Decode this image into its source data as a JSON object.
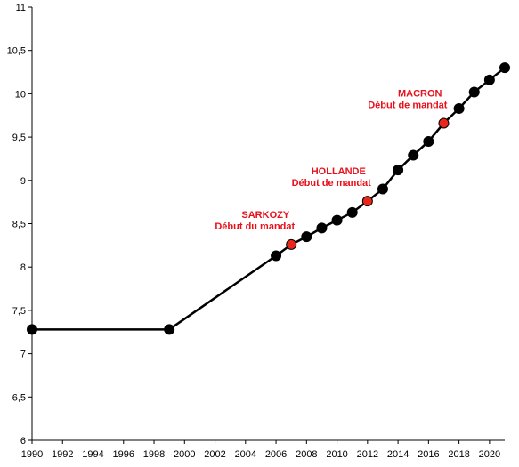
{
  "chart_data": {
    "type": "line",
    "title": "",
    "xlabel": "",
    "ylabel": "",
    "xlim": [
      1990,
      2021
    ],
    "ylim": [
      6,
      11
    ],
    "x_ticks": [
      1990,
      1992,
      1994,
      1996,
      1998,
      2000,
      2002,
      2004,
      2006,
      2008,
      2010,
      2012,
      2014,
      2016,
      2018,
      2020
    ],
    "y_ticks": [
      "6",
      "6,5",
      "7",
      "7,5",
      "8",
      "8,5",
      "9",
      "9,5",
      "10",
      "10,5",
      "11"
    ],
    "y_tick_values": [
      6,
      6.5,
      7,
      7.5,
      8,
      8.5,
      9,
      9.5,
      10,
      10.5,
      11
    ],
    "grid": false,
    "series": [
      {
        "x": [
          1990,
          1999,
          2006,
          2007,
          2008,
          2009,
          2010,
          2011,
          2012,
          2013,
          2014,
          2015,
          2016,
          2017,
          2018,
          2019,
          2020,
          2021
        ],
        "values": [
          7.28,
          7.28,
          8.13,
          8.26,
          8.35,
          8.45,
          8.54,
          8.63,
          8.76,
          8.9,
          9.12,
          9.29,
          9.45,
          9.66,
          9.83,
          10.02,
          10.16,
          10.3
        ],
        "highlight_years": [
          2007,
          2012,
          2017
        ],
        "color": "#000000",
        "highlight_color": "#e8261a"
      }
    ],
    "annotations": [
      {
        "lines": [
          "SARKOZY",
          "Début du mandat"
        ],
        "x": 2007,
        "y": 8.26,
        "color": "#e8101a"
      },
      {
        "lines": [
          "HOLLANDE",
          "Début de mandat"
        ],
        "x": 2012,
        "y": 8.76,
        "color": "#e8101a"
      },
      {
        "lines": [
          "MACRON",
          "Début de mandat"
        ],
        "x": 2017,
        "y": 9.66,
        "color": "#e8101a"
      }
    ]
  }
}
